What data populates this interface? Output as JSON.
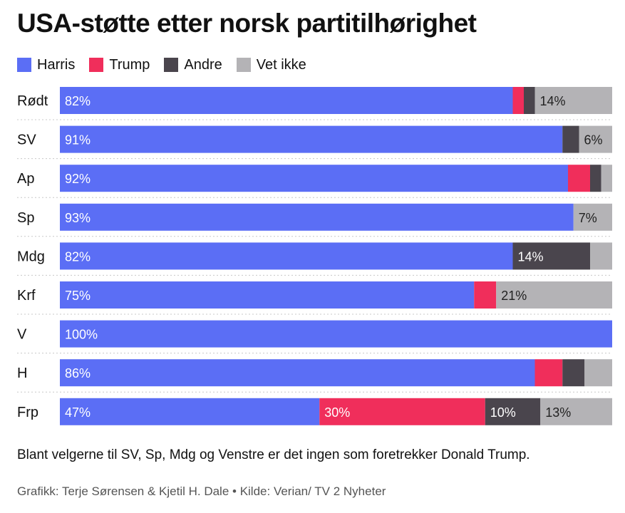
{
  "title": "USA-støtte etter norsk partitilhørighet",
  "legend": [
    {
      "label": "Harris",
      "color": "#5b6ef5"
    },
    {
      "label": "Trump",
      "color": "#f02e5b"
    },
    {
      "label": "Andre",
      "color": "#4a454d"
    },
    {
      "label": "Vet ikke",
      "color": "#b4b3b6"
    }
  ],
  "chart_data": {
    "type": "bar",
    "orientation": "horizontal",
    "stacked": true,
    "title": "USA-støtte etter norsk partitilhørighet",
    "unit": "%",
    "xlim": [
      0,
      100
    ],
    "categories": [
      "Rødt",
      "SV",
      "Ap",
      "Sp",
      "Mdg",
      "Krf",
      "V",
      "H",
      "Frp"
    ],
    "series": [
      {
        "name": "Harris",
        "color": "#5b6ef5",
        "values": [
          82,
          91,
          92,
          93,
          82,
          75,
          100,
          86,
          47
        ]
      },
      {
        "name": "Trump",
        "color": "#f02e5b",
        "values": [
          2,
          0,
          4,
          0,
          0,
          4,
          0,
          5,
          30
        ]
      },
      {
        "name": "Andre",
        "color": "#4a454d",
        "values": [
          2,
          3,
          2,
          0,
          14,
          0,
          0,
          4,
          10
        ]
      },
      {
        "name": "Vet ikke",
        "color": "#b4b3b6",
        "values": [
          14,
          6,
          2,
          7,
          4,
          21,
          0,
          5,
          13
        ]
      }
    ],
    "data_labels": [
      [
        "82%",
        "",
        "",
        "14%"
      ],
      [
        "91%",
        "",
        "",
        "6%"
      ],
      [
        "92%",
        "",
        "",
        ""
      ],
      [
        "93%",
        "",
        "",
        "7%"
      ],
      [
        "82%",
        "",
        "14%",
        ""
      ],
      [
        "75%",
        "",
        "",
        "21%"
      ],
      [
        "100%",
        "",
        "",
        ""
      ],
      [
        "86%",
        "",
        "",
        ""
      ],
      [
        "47%",
        "30%",
        "10%",
        "13%"
      ]
    ]
  },
  "note": "Blant velgerne til SV, Sp, Mdg og Venstre er det ingen som foretrekker Donald Trump.",
  "source": "Grafikk: Terje Sørensen & Kjetil H. Dale • Kilde: Verian/ TV 2 Nyheter"
}
